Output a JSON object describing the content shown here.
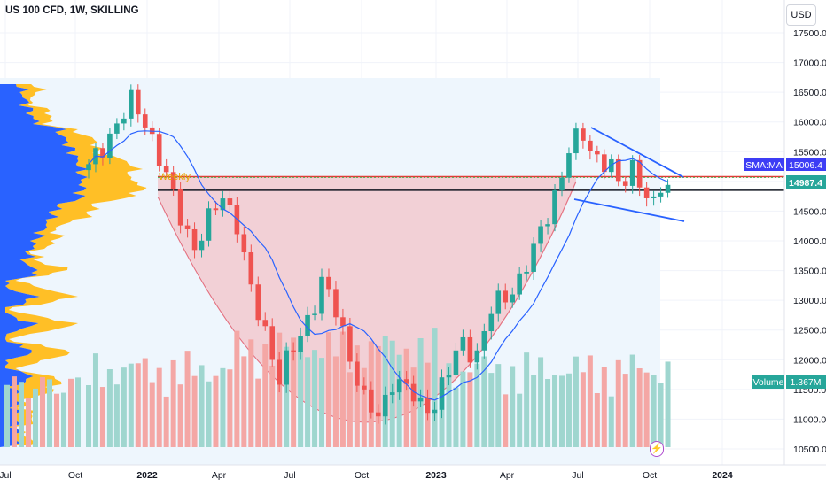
{
  "header": {
    "symbol_title": "US 100 CFD, 1W, SKILLING",
    "currency_label": "USD"
  },
  "chart_data": {
    "type": "candlestick",
    "title": "US 100 CFD, 1W, SKILLING",
    "y_ticks": [
      17500,
      17000,
      16500,
      16000,
      15500,
      15000,
      14500,
      14000,
      13500,
      13000,
      12500,
      12000,
      11500,
      11000,
      10500
    ],
    "ylim": [
      10400,
      17550
    ],
    "x_ticks": [
      "Jul",
      "Oct",
      "2022",
      "Apr",
      "Jul",
      "Oct",
      "2023",
      "Apr",
      "Jul",
      "Oct",
      "2024"
    ],
    "tags": {
      "sma_label": "SMA:MA",
      "sma_value": "15006.4",
      "price_value": "14987.4",
      "volume_label": "Volume",
      "volume_value": "1.367M"
    },
    "annotation": "Weekly",
    "levels": {
      "red_line": 15080,
      "black_line": 14850
    },
    "series": [
      {
        "name": "price",
        "weekly_close_keypoints": [
          [
            0,
            15200
          ],
          [
            3,
            15800
          ],
          [
            6,
            16300
          ],
          [
            8,
            16050
          ],
          [
            10,
            15400
          ],
          [
            12,
            14700
          ],
          [
            15,
            13900
          ],
          [
            17,
            14300
          ],
          [
            19,
            14800
          ],
          [
            21,
            14300
          ],
          [
            23,
            13100
          ],
          [
            25,
            12500
          ],
          [
            27,
            11700
          ],
          [
            29,
            12150
          ],
          [
            31,
            12700
          ],
          [
            33,
            13300
          ],
          [
            35,
            12800
          ],
          [
            37,
            12100
          ],
          [
            39,
            11300
          ],
          [
            41,
            11000
          ],
          [
            43,
            11700
          ],
          [
            45,
            11500
          ],
          [
            47,
            11200
          ],
          [
            49,
            11300
          ],
          [
            51,
            11800
          ],
          [
            53,
            12300
          ],
          [
            55,
            12100
          ],
          [
            57,
            12800
          ],
          [
            59,
            13100
          ],
          [
            61,
            13350
          ],
          [
            63,
            13800
          ],
          [
            65,
            14500
          ],
          [
            67,
            15100
          ],
          [
            68,
            15500
          ],
          [
            70,
            15800
          ],
          [
            72,
            15400
          ],
          [
            74,
            15200
          ],
          [
            75,
            14900
          ],
          [
            77,
            15300
          ],
          [
            78,
            15000
          ],
          [
            80,
            14500
          ],
          [
            81,
            14900
          ],
          [
            82,
            14980
          ]
        ]
      },
      {
        "name": "SMA:MA",
        "value": 15006.4
      },
      {
        "name": "Volume",
        "value": "1.367M"
      }
    ]
  },
  "colors": {
    "up": "#26a69a",
    "down": "#ef5350",
    "sma": "#2962ff",
    "profile_blue": "#2962ff",
    "profile_yellow": "#ffbf26",
    "cup_fill": "#f2c9cf",
    "trend": "#2962ff",
    "resistance": "#e53935"
  }
}
